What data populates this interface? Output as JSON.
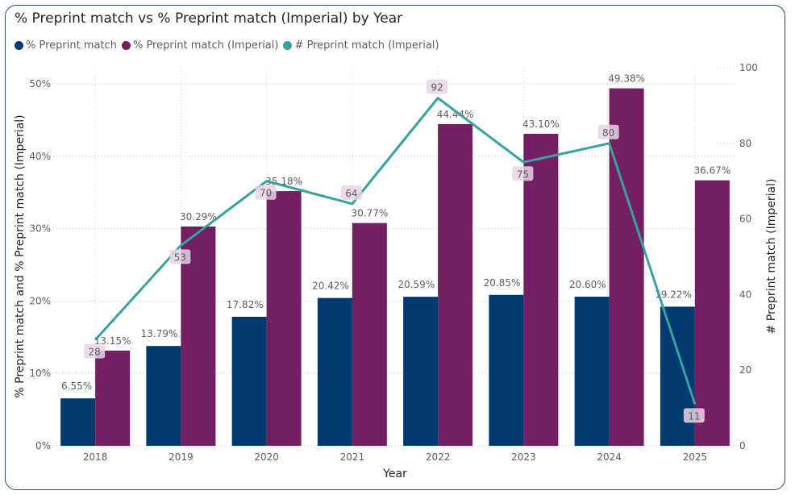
{
  "chart_data": {
    "type": "bar",
    "title": "% Preprint match vs % Preprint match (Imperial) by Year",
    "xlabel": "Year",
    "ylabel": "% Preprint match and % Preprint match (Imperial)",
    "y2label": "# Preprint match (Imperial)",
    "categories": [
      "2018",
      "2019",
      "2020",
      "2021",
      "2022",
      "2023",
      "2024",
      "2025"
    ],
    "ylim": [
      0,
      50
    ],
    "y2lim": [
      0,
      100
    ],
    "yticks": [
      "0%",
      "10%",
      "20%",
      "30%",
      "40%",
      "50%"
    ],
    "y2ticks": [
      "0",
      "20",
      "40",
      "60",
      "80",
      "100"
    ],
    "grid": true,
    "legend_position": "top-left",
    "series": [
      {
        "name": "% Preprint match",
        "type": "bar",
        "axis": "left",
        "color": "#003a70",
        "values": [
          6.55,
          13.79,
          17.82,
          20.42,
          20.59,
          20.85,
          20.6,
          19.22
        ],
        "labels": [
          "6.55%",
          "13.79%",
          "17.82%",
          "20.42%",
          "20.59%",
          "20.85%",
          "20.60%",
          "19.22%"
        ]
      },
      {
        "name": "% Preprint match (Imperial)",
        "type": "bar",
        "axis": "left",
        "color": "#741e63",
        "values": [
          13.15,
          30.29,
          35.18,
          30.77,
          44.44,
          43.1,
          49.38,
          36.67
        ],
        "labels": [
          "13.15%",
          "30.29%",
          "35.18%",
          "30.77%",
          "44.44%",
          "43.10%",
          "49.38%",
          "36.67%"
        ]
      },
      {
        "name": "# Preprint match (Imperial)",
        "type": "line",
        "axis": "right",
        "color": "#37a3a0",
        "values": [
          28,
          53,
          70,
          64,
          92,
          75,
          80,
          11
        ],
        "labels": [
          "28",
          "53",
          "70",
          "64",
          "92",
          "75",
          "80",
          "11"
        ]
      }
    ]
  }
}
